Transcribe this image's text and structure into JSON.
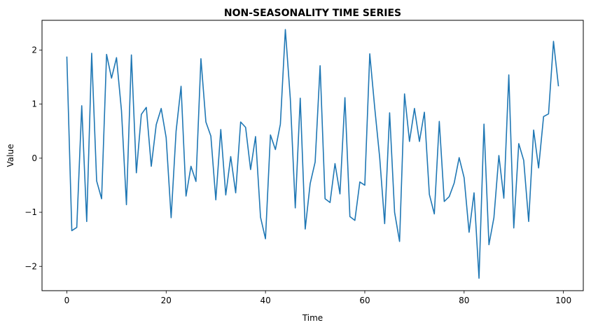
{
  "chart_data": {
    "type": "line",
    "title": "NON-SEASONALITY TIME SERIES",
    "xlabel": "Time",
    "ylabel": "Value",
    "xlim": [
      -5,
      104
    ],
    "ylim": [
      -2.45,
      2.55
    ],
    "xticks": [
      0,
      20,
      40,
      60,
      80,
      100
    ],
    "yticks": [
      -2,
      -1,
      0,
      1,
      2
    ],
    "xtick_labels": [
      "0",
      "20",
      "40",
      "60",
      "80",
      "100"
    ],
    "ytick_labels": [
      "−2",
      "−1",
      "0",
      "1",
      "2"
    ],
    "grid": false,
    "line_color": "#1f77b4",
    "series": [
      {
        "x": [
          0,
          1,
          2,
          3,
          4,
          5,
          6,
          7,
          8,
          9,
          10,
          11,
          12,
          13,
          14,
          15,
          16,
          17,
          18,
          19,
          20,
          21,
          22,
          23,
          24,
          25,
          26,
          27,
          28,
          29,
          30,
          31,
          32,
          33,
          34,
          35,
          36,
          37,
          38,
          39,
          40,
          41,
          42,
          43,
          44,
          45,
          46,
          47,
          48,
          49,
          50,
          51,
          52,
          53,
          54,
          55,
          56,
          57,
          58,
          59,
          60,
          61,
          62,
          63,
          64,
          65,
          66,
          67,
          68,
          69,
          70,
          71,
          72,
          73,
          74,
          75,
          76,
          77,
          78,
          79,
          80,
          81,
          82,
          83,
          84,
          85,
          86,
          87,
          88,
          89,
          90,
          91,
          92,
          93,
          94,
          95,
          96,
          97,
          98,
          99
        ],
        "values": [
          1.88,
          -1.34,
          -1.28,
          0.97,
          -1.17,
          1.94,
          -0.42,
          -0.75,
          1.92,
          1.48,
          1.86,
          0.88,
          -0.86,
          1.91,
          -0.27,
          0.81,
          0.94,
          -0.15,
          0.62,
          0.92,
          0.38,
          -1.1,
          0.5,
          1.33,
          -0.7,
          -0.15,
          -0.43,
          1.84,
          0.67,
          0.41,
          -0.77,
          0.53,
          -0.68,
          0.03,
          -0.64,
          0.67,
          0.57,
          -0.21,
          0.4,
          -1.09,
          -1.49,
          0.43,
          0.16,
          0.63,
          2.38,
          1.1,
          -0.92,
          1.11,
          -1.31,
          -0.47,
          -0.07,
          1.71,
          -0.75,
          -0.82,
          -0.1,
          -0.66,
          1.12,
          -1.08,
          -1.15,
          -0.44,
          -0.5,
          1.93,
          0.93,
          0.01,
          -1.21,
          0.84,
          -1.0,
          -1.54,
          1.19,
          0.31,
          0.92,
          0.31,
          0.85,
          -0.67,
          -1.03,
          0.68,
          -0.8,
          -0.71,
          -0.46,
          0.01,
          -0.36,
          -1.37,
          -0.64,
          -2.22,
          0.63,
          -1.6,
          -1.1,
          0.05,
          -0.74,
          1.54,
          -1.29,
          0.27,
          -0.04,
          -1.17,
          0.52,
          -0.18,
          0.77,
          0.82,
          2.16,
          1.33
        ]
      }
    ]
  }
}
